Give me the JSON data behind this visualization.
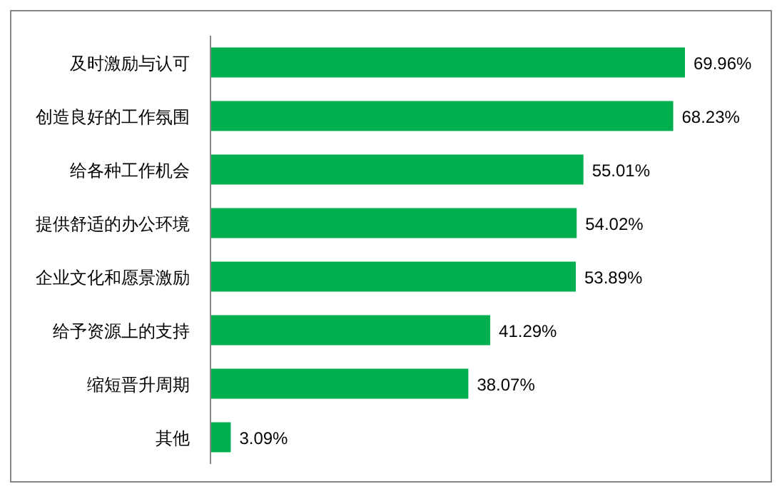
{
  "chart_data": {
    "type": "bar",
    "orientation": "horizontal",
    "color": "#00b050",
    "categories": [
      "及时激励与认可",
      "创造良好的工作氛围",
      "给各种工作机会",
      "提供舒适的办公环境",
      "企业文化和愿景激励",
      "给予资源上的支持",
      "缩短晋升周期",
      "其他"
    ],
    "values": [
      69.96,
      68.23,
      55.01,
      54.02,
      53.89,
      41.29,
      38.07,
      3.09
    ],
    "value_labels": [
      "69.96%",
      "68.23%",
      "55.01%",
      "54.02%",
      "53.89%",
      "41.29%",
      "38.07%",
      "3.09%"
    ]
  }
}
